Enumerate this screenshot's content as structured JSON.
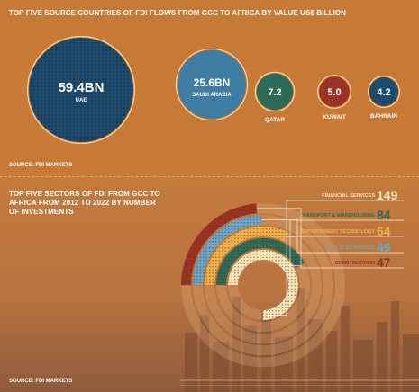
{
  "top_section": {
    "title": "TOP FIVE SOURCE COUNTRIES OF FDI FLOWS FROM GCC TO AFRICA BY VALUE US$ BILLION",
    "source": "SOURCE: FDI MARKETS"
  },
  "bottom_section": {
    "title": "TOP FIVE SECTORS OF FDI FROM GCC TO AFRICA FROM 2012 TO 2022 BY NUMBER OF INVESTMENTS",
    "source": "SOURCE: FDI MARKETS"
  },
  "chart_data": [
    {
      "type": "bubble",
      "title": "TOP FIVE SOURCE COUNTRIES OF FDI FLOWS FROM GCC TO AFRICA BY VALUE US$ BILLION",
      "categories": [
        "UAE",
        "SAUDI ARABIA",
        "QATAR",
        "KUWAIT",
        "BAHRAIN"
      ],
      "values": [
        59.4,
        25.6,
        7.2,
        5.0,
        4.2
      ],
      "value_labels": [
        "59.4BN",
        "25.6BN",
        "7.2",
        "5.0",
        "4.2"
      ],
      "colors": [
        "#1e4a6b",
        "#3f7da3",
        "#2d6a58",
        "#9b3324",
        "#1e4a6b"
      ]
    },
    {
      "type": "radial_bar",
      "title": "TOP FIVE SECTORS OF FDI FROM GCC TO AFRICA FROM 2012 TO 2022 BY NUMBER OF INVESTMENTS",
      "categories": [
        "FINANCIAL SERVICES",
        "TRANSPORT & WAREHOUSING",
        "ENVIRONMENT TECHNOLOGY",
        "ICT & ELECTRONICS",
        "CONSTRUCTION"
      ],
      "values": [
        149,
        84,
        64,
        49,
        47
      ],
      "colors": [
        "#f5e6b8",
        "#2d6a58",
        "#f0b04a",
        "#6aa6c8",
        "#9b3324"
      ]
    }
  ]
}
